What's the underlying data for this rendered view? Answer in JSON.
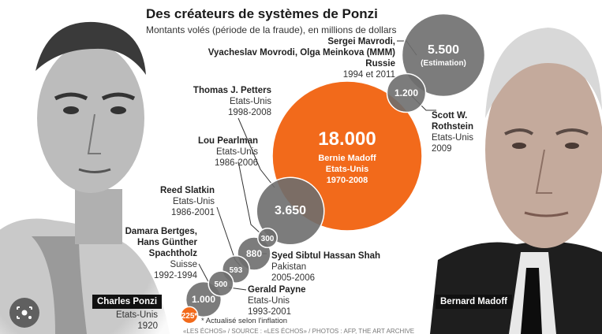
{
  "title": "Des créateurs de systèmes de Ponzi",
  "subtitle": "Montants volés (période de la fraude), en millions de dollars",
  "note": "* Actualisé selon l'inflation",
  "credit": "«LES ÉCHOS» / SOURCE : «LES ÉCHOS» / PHOTOS : AFP, THE ART ARCHIVE",
  "photo_labels": {
    "left": "Charles Ponzi",
    "right": "Bernard Madoff"
  },
  "icons": {
    "lens": "google-lens-icon"
  },
  "colors": {
    "orange": "#f26a1b",
    "gray": "#6e6e6e",
    "light_gray": "#a0a0a0",
    "dark": "#111111"
  },
  "chart_data": {
    "type": "bubble",
    "title": "Des créateurs de systèmes de Ponzi",
    "subtitle": "Montants volés (période de la fraude), en millions de dollars",
    "unit": "millions de dollars",
    "points": [
      {
        "label": "225*",
        "value": 225,
        "name": "Charles Ponzi",
        "country": "Etats-Unis",
        "period": "1920",
        "color": "#f26a1b"
      },
      {
        "label": "1.000",
        "value": 1000,
        "name": "Damara Bertges, Hans Günther Spachtholz",
        "country": "Suisse",
        "period": "1992-1994",
        "color": "#6e6e6e"
      },
      {
        "label": "500",
        "value": 500,
        "name": "Gerald Payne",
        "country": "Etats-Unis",
        "period": "1993-2001",
        "color": "#6e6e6e"
      },
      {
        "label": "593",
        "value": 593,
        "name": "Reed Slatkin",
        "country": "Etats-Unis",
        "period": "1986-2001",
        "color": "#6e6e6e"
      },
      {
        "label": "880",
        "value": 880,
        "name": "Syed Sibtul Hassan Shah",
        "country": "Pakistan",
        "period": "2005-2006",
        "color": "#6e6e6e"
      },
      {
        "label": "300",
        "value": 300,
        "name": "Lou Pearlman",
        "country": "Etats-Unis",
        "period": "1986-2006",
        "color": "#6e6e6e"
      },
      {
        "label": "3.650",
        "value": 3650,
        "name": "Thomas J. Petters",
        "country": "Etats-Unis",
        "period": "1998-2008",
        "color": "#6e6e6e"
      },
      {
        "label": "18.000",
        "value": 18000,
        "name": "Bernie Madoff",
        "country": "Etats-Unis",
        "period": "1970-2008",
        "color": "#f26a1b"
      },
      {
        "label": "1.200",
        "value": 1200,
        "name": "Scott W. Rothstein",
        "country": "Etats-Unis",
        "period": "2009",
        "color": "#6e6e6e"
      },
      {
        "label": "5.500",
        "sublabel": "(Estimation)",
        "value": 5500,
        "name": "Sergei Mavrodi, Vyacheslav Movrodi, Olga Meinkova (MMM)",
        "country": "Russie",
        "period": "1994 et 2011",
        "color": "#6e6e6e"
      }
    ],
    "bubble_annotation": {
      "name": "Bernie Madoff",
      "country": "Etats-Unis",
      "period": "1970-2008"
    },
    "labels": {
      "mavrodi": {
        "name1": "Sergei Mavrodi,",
        "name2": "Vyacheslav Movrodi, Olga Meinkova (MMM)",
        "country": "Russie",
        "period": "1994 et 2011"
      },
      "petters": {
        "name": "Thomas J. Petters",
        "country": "Etats-Unis",
        "period": "1998-2008"
      },
      "pearlman": {
        "name": "Lou Pearlman",
        "country": "Etats-Unis",
        "period": "1986-2006"
      },
      "slatkin": {
        "name": "Reed Slatkin",
        "country": "Etats-Unis",
        "period": "1986-2001"
      },
      "bertges": {
        "name1": "Damara Bertges,",
        "name2": "Hans Günther",
        "name3": "Spachtholz",
        "country": "Suisse",
        "period": "1992-1994"
      },
      "ponzi": {
        "country": "Etats-Unis",
        "period": "1920"
      },
      "rothstein": {
        "name1": "Scott W.",
        "name2": "Rothstein",
        "country": "Etats-Unis",
        "period": "2009"
      },
      "shah": {
        "name": "Syed Sibtul Hassan Shah",
        "country": "Pakistan",
        "period": "2005-2006"
      },
      "payne": {
        "name": "Gerald Payne",
        "country": "Etats-Unis",
        "period": "1993-2001"
      }
    }
  }
}
